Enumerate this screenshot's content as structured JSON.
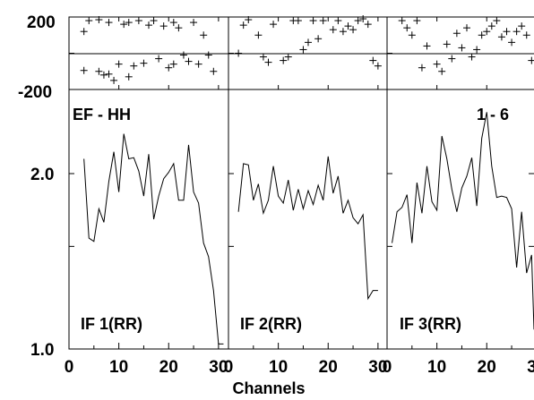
{
  "header": {
    "baseline_label": "EF - HH",
    "sub_label": "1 - 6"
  },
  "axes": {
    "x_title": "Channels",
    "phase_ticks": [
      "200",
      "-200"
    ],
    "amp_ticks": [
      "2.0",
      "1.0"
    ],
    "x_ticks": [
      "0",
      "10",
      "20",
      "30"
    ]
  },
  "chart_data": [
    {
      "type": "scatter",
      "panel": "phase",
      "ylim": [
        -200,
        200
      ],
      "xlim": [
        0,
        32
      ],
      "series": [
        {
          "x": [
            3,
            4,
            6,
            8,
            11,
            12,
            14,
            16,
            17,
            19,
            21,
            22,
            25,
            27,
            29,
            3,
            6,
            7,
            8,
            9,
            10,
            12,
            13,
            15,
            18,
            20,
            21,
            23,
            24,
            26,
            28
          ],
          "y": [
            120,
            180,
            185,
            170,
            160,
            170,
            180,
            155,
            180,
            150,
            170,
            140,
            170,
            100,
            -100,
            -95,
            -100,
            -120,
            -115,
            -150,
            -60,
            -130,
            -70,
            -55,
            -30,
            -80,
            -60,
            -10,
            -45,
            -60,
            -10
          ]
        },
        {
          "x": [
            2,
            3,
            4,
            6,
            7,
            8,
            9,
            11,
            12,
            13,
            14,
            15,
            16,
            17,
            18,
            19,
            21,
            22,
            23,
            24,
            25,
            26,
            27,
            28,
            29,
            30
          ],
          "y": [
            0,
            155,
            185,
            100,
            -20,
            -50,
            160,
            -40,
            -20,
            180,
            180,
            20,
            60,
            180,
            80,
            180,
            130,
            180,
            120,
            150,
            130,
            180,
            190,
            160,
            -40,
            -70
          ]
        },
        {
          "x": [
            3,
            4,
            5,
            6,
            7,
            8,
            10,
            11,
            12,
            13,
            14,
            15,
            16,
            17,
            18,
            19,
            20,
            21,
            22,
            23,
            24,
            25,
            26,
            27,
            28,
            29,
            30
          ],
          "y": [
            180,
            140,
            100,
            180,
            -80,
            40,
            -60,
            -100,
            50,
            -30,
            110,
            30,
            140,
            -20,
            20,
            100,
            120,
            150,
            180,
            90,
            120,
            60,
            120,
            150,
            100,
            -40,
            -50
          ]
        }
      ]
    },
    {
      "type": "line",
      "panel": "amplitude",
      "ylim": [
        1.0,
        2.8
      ],
      "xlim": [
        0,
        32
      ],
      "series": [
        {
          "name": "IF 1(RR)",
          "x": [
            3,
            4,
            5,
            6,
            7,
            8,
            9,
            10,
            11,
            12,
            13,
            14,
            15,
            16,
            17,
            18,
            19,
            20,
            21,
            22,
            23,
            24,
            25,
            26,
            27,
            28,
            29,
            30,
            31
          ],
          "y": [
            2.12,
            1.55,
            1.53,
            1.74,
            1.65,
            1.94,
            2.18,
            1.86,
            2.34,
            2.12,
            2.13,
            2.02,
            1.83,
            2.16,
            1.67,
            1.83,
            1.96,
            2.01,
            2.08,
            1.8,
            1.8,
            2.24,
            1.86,
            1.78,
            1.52,
            1.44,
            1.26,
            1.02,
            1.02
          ]
        },
        {
          "name": "IF 2(RR)",
          "x": [
            2,
            3,
            4,
            5,
            6,
            7,
            8,
            9,
            10,
            11,
            12,
            13,
            14,
            15,
            16,
            17,
            18,
            19,
            20,
            21,
            22,
            23,
            24,
            25,
            26,
            27,
            28,
            29,
            30
          ],
          "y": [
            1.72,
            2.08,
            2.07,
            1.8,
            1.92,
            1.71,
            1.8,
            2.06,
            1.83,
            1.78,
            1.95,
            1.73,
            1.88,
            1.74,
            1.87,
            1.77,
            1.91,
            1.8,
            2.14,
            1.85,
            1.98,
            1.71,
            1.8,
            1.68,
            1.64,
            1.7,
            1.22,
            1.26,
            1.26
          ]
        },
        {
          "name": "IF 3(RR)",
          "x": [
            1,
            2,
            3,
            4,
            5,
            6,
            7,
            8,
            9,
            10,
            11,
            12,
            13,
            14,
            15,
            16,
            17,
            18,
            19,
            20,
            21,
            22,
            23,
            24,
            25,
            26,
            27,
            28,
            29,
            30
          ],
          "y": [
            1.52,
            1.72,
            1.75,
            1.84,
            1.52,
            1.93,
            1.71,
            2.06,
            1.79,
            1.73,
            2.32,
            2.12,
            1.88,
            1.72,
            1.89,
            1.98,
            2.13,
            1.76,
            2.3,
            2.55,
            2.06,
            1.82,
            1.83,
            1.82,
            1.74,
            1.38,
            1.72,
            1.35,
            1.45,
            1.08
          ]
        }
      ]
    }
  ]
}
